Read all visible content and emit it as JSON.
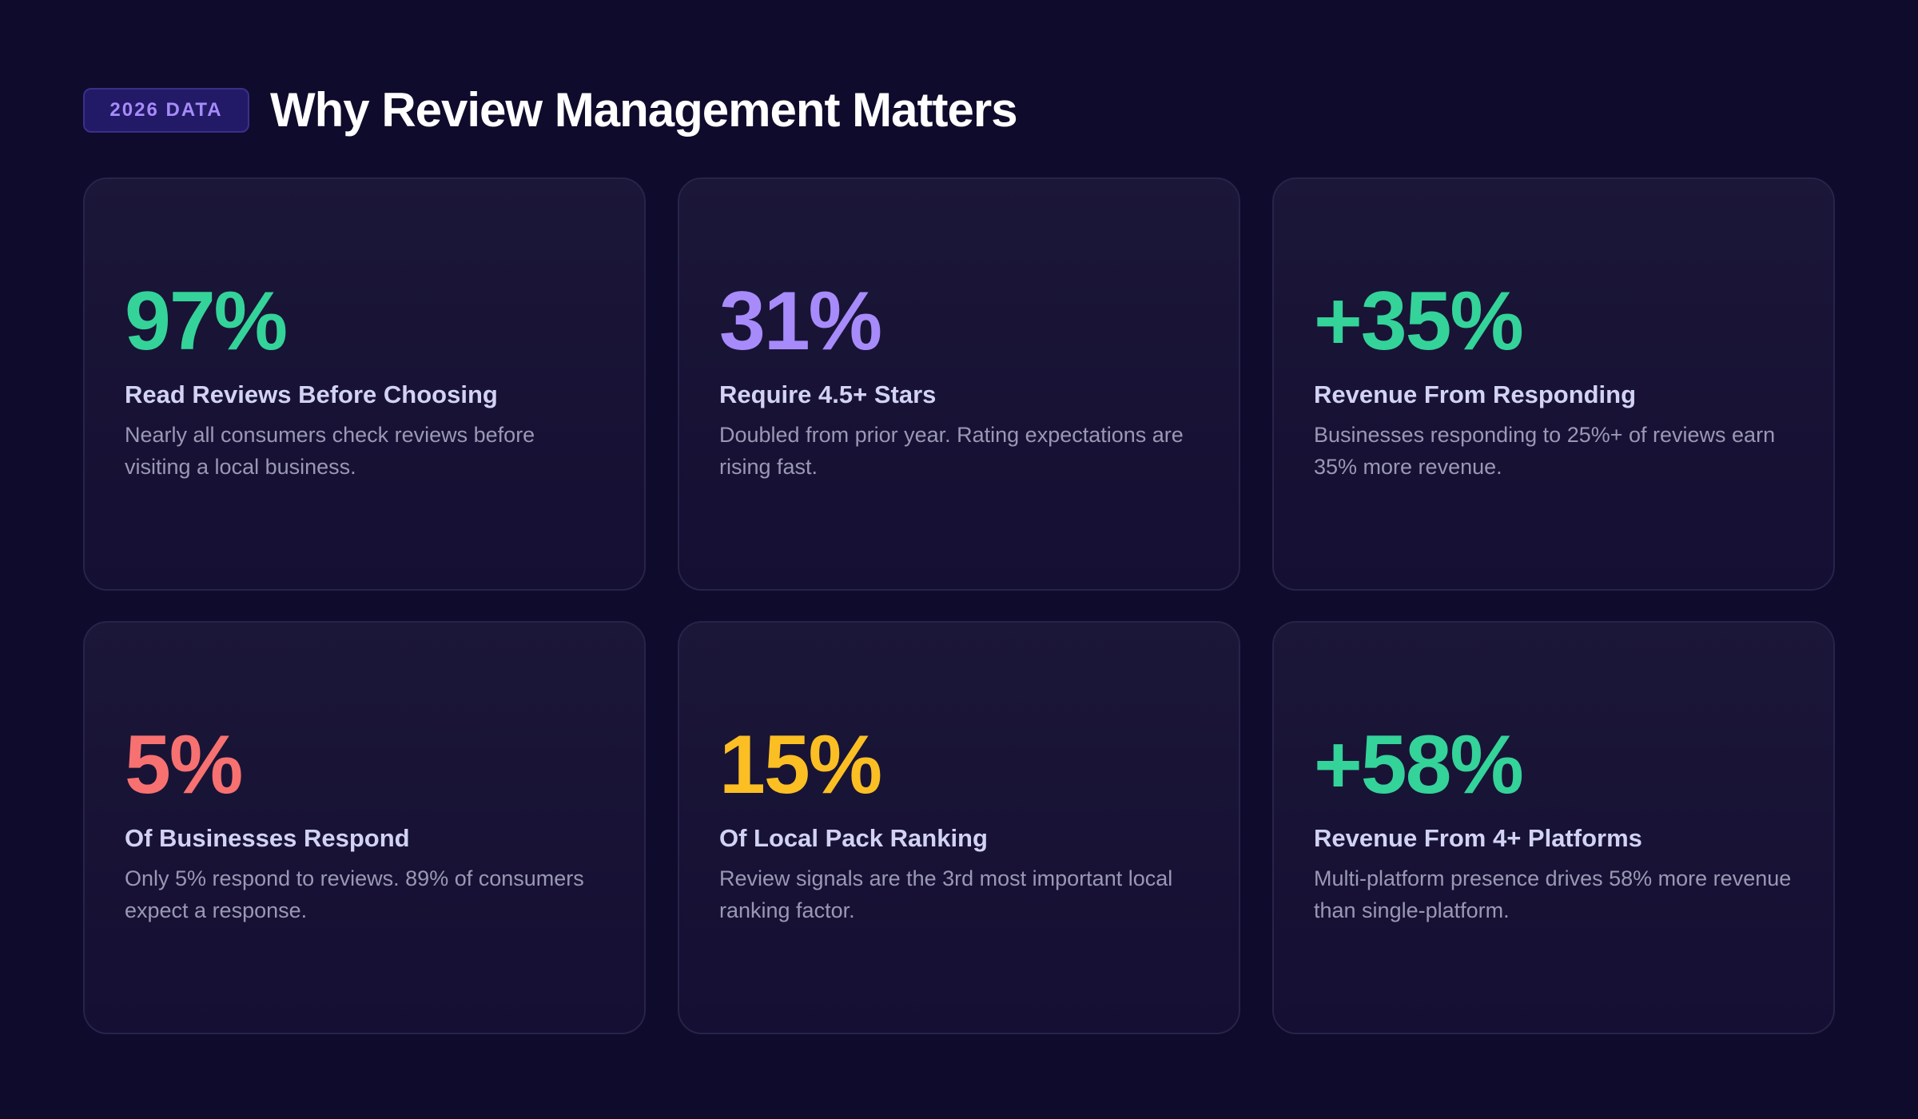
{
  "header": {
    "badge": "2026 DATA",
    "title": "Why Review Management Matters"
  },
  "cards": [
    {
      "stat": "97%",
      "color": "#34d399",
      "label": "Read Reviews Before Choosing",
      "description": "Nearly all consumers check reviews before visiting a local business."
    },
    {
      "stat": "31%",
      "color": "#a78bfa",
      "label": "Require 4.5+ Stars",
      "description": "Doubled from prior year. Rating expectations are rising fast."
    },
    {
      "stat": "+35%",
      "color": "#34d399",
      "label": "Revenue From Responding",
      "description": "Businesses responding to 25%+ of reviews earn 35% more revenue."
    },
    {
      "stat": "5%",
      "color": "#f87171",
      "label": "Of Businesses Respond",
      "description": "Only 5% respond to reviews. 89% of consumers expect a response."
    },
    {
      "stat": "15%",
      "color": "#fbbf24",
      "label": "Of Local Pack Ranking",
      "description": "Review signals are the 3rd most important local ranking factor."
    },
    {
      "stat": "+58%",
      "color": "#34d399",
      "label": "Revenue From 4+ Platforms",
      "description": "Multi-platform presence drives 58% more revenue than single-platform."
    }
  ]
}
